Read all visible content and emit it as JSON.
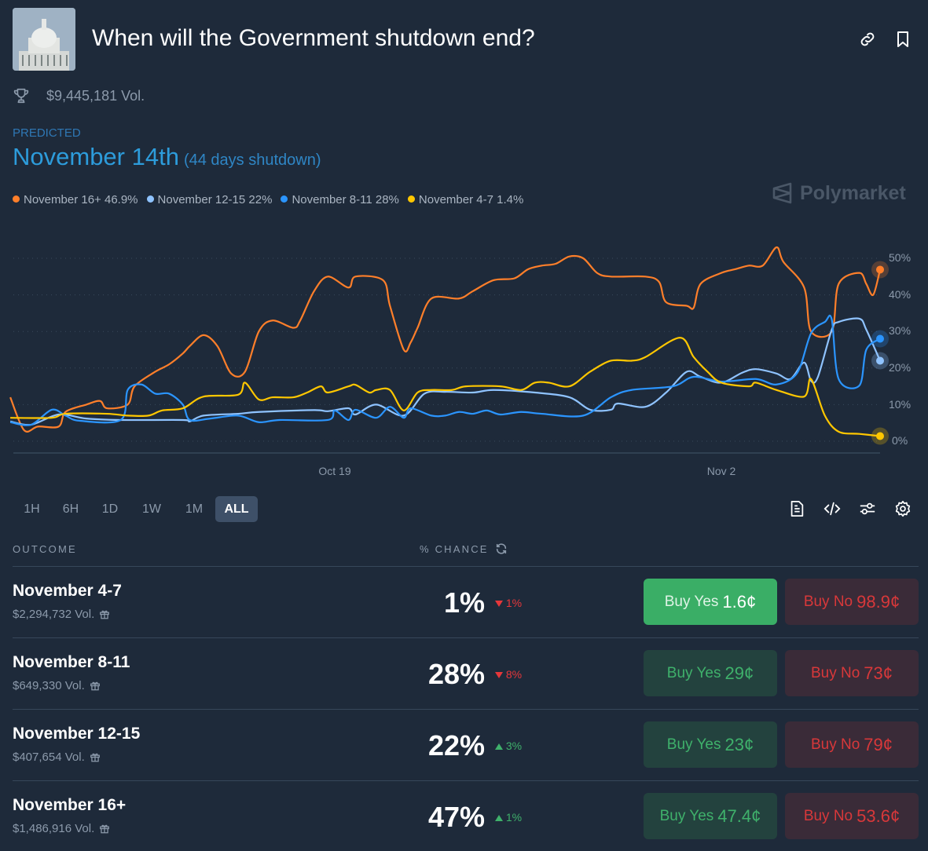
{
  "header": {
    "title": "When will the Government shutdown end?",
    "volume": "$9,445,181 Vol.",
    "icons": [
      "link-icon",
      "bookmark-icon",
      "trophy-icon"
    ]
  },
  "prediction": {
    "label": "PREDICTED",
    "value": "November 14th",
    "detail": "(44 days shutdown)"
  },
  "legend": [
    {
      "label": "November 16+ 46.9%",
      "color": "#ff7f2a"
    },
    {
      "label": "November 12-15 22%",
      "color": "#8fc3ff"
    },
    {
      "label": "November 8-11 28%",
      "color": "#2b95ff"
    },
    {
      "label": "November 4-7 1.4%",
      "color": "#ffc700"
    }
  ],
  "watermark": "Polymarket",
  "chart_data": {
    "type": "line",
    "xlabel": "",
    "ylabel": "",
    "x_ticks": [
      "Oct 19",
      "Nov 2"
    ],
    "y_ticks": [
      "0%",
      "10%",
      "20%",
      "30%",
      "40%",
      "50%"
    ],
    "ylim": [
      0,
      55
    ],
    "grid": true,
    "legend_position": "top-left",
    "series": [
      {
        "name": "November 16+",
        "color": "#ff7f2a",
        "points": [
          [
            "Oct 7 06:00",
            12
          ],
          [
            "Oct 7 18:00",
            3
          ],
          [
            "Oct 8 06:00",
            4
          ],
          [
            "Oct 9 00:00",
            4
          ],
          [
            "Oct 9 06:00",
            8
          ],
          [
            "Oct 10 00:00",
            10
          ],
          [
            "Oct 10 12:00",
            11
          ],
          [
            "Oct 10 18:00",
            9
          ],
          [
            "Oct 11 12:00",
            10
          ],
          [
            "Oct 11 18:00",
            15
          ],
          [
            "Oct 12 12:00",
            19
          ],
          [
            "Oct 13 00:00",
            21
          ],
          [
            "Oct 13 12:00",
            24
          ],
          [
            "Oct 13 18:00",
            26
          ],
          [
            "Oct 14 06:00",
            29
          ],
          [
            "Oct 14 18:00",
            26
          ],
          [
            "Oct 15 06:00",
            18.5
          ],
          [
            "Oct 15 18:00",
            19
          ],
          [
            "Oct 16 06:00",
            30
          ],
          [
            "Oct 16 18:00",
            33
          ],
          [
            "Oct 17 12:00",
            31
          ],
          [
            "Oct 17 18:00",
            33
          ],
          [
            "Oct 18 06:00",
            41
          ],
          [
            "Oct 18 18:00",
            45
          ],
          [
            "Oct 19 12:00",
            42
          ],
          [
            "Oct 19 18:00",
            45
          ],
          [
            "Oct 20 18:00",
            44
          ],
          [
            "Oct 21 00:00",
            37
          ],
          [
            "Oct 21 12:00",
            25
          ],
          [
            "Oct 21 18:00",
            27
          ],
          [
            "Oct 22 00:00",
            31
          ],
          [
            "Oct 22 12:00",
            39
          ],
          [
            "Oct 23 12:00",
            39
          ],
          [
            "Oct 24 00:00",
            41
          ],
          [
            "Oct 24 18:00",
            44
          ],
          [
            "Oct 25 12:00",
            44.5
          ],
          [
            "Oct 26 00:00",
            47
          ],
          [
            "Oct 26 12:00",
            48
          ],
          [
            "Oct 27 00:00",
            48.5
          ],
          [
            "Oct 27 12:00",
            50.5
          ],
          [
            "Oct 28 00:00",
            50
          ],
          [
            "Oct 28 12:00",
            46
          ],
          [
            "Oct 29 00:00",
            45
          ],
          [
            "Oct 30 06:00",
            45
          ],
          [
            "Oct 30 18:00",
            43.5
          ],
          [
            "Oct 31 00:00",
            38
          ],
          [
            "Oct 31 18:00",
            37
          ],
          [
            "Nov 1 00:00",
            36.5
          ],
          [
            "Nov 1 06:00",
            43
          ],
          [
            "Nov 2 00:00",
            46
          ],
          [
            "Nov 2 12:00",
            47
          ],
          [
            "Nov 3 00:00",
            48
          ],
          [
            "Nov 3 12:00",
            48
          ],
          [
            "Nov 4 00:00",
            53
          ],
          [
            "Nov 4 06:00",
            49
          ],
          [
            "Nov 5 00:00",
            42
          ],
          [
            "Nov 5 06:00",
            30
          ],
          [
            "Nov 6 00:00",
            30
          ],
          [
            "Nov 6 06:00",
            43
          ],
          [
            "Nov 7 00:00",
            46
          ],
          [
            "Nov 7 06:00",
            43
          ],
          [
            "Nov 7 12:00",
            40
          ],
          [
            "Nov 7 18:00",
            46.9
          ]
        ]
      },
      {
        "name": "November 12-15",
        "color": "#8fc3ff",
        "points": [
          [
            "Oct 7 06:00",
            5.4
          ],
          [
            "Oct 8 00:00",
            4.5
          ],
          [
            "Oct 9 00:00",
            7.3
          ],
          [
            "Oct 10 00:00",
            6.2
          ],
          [
            "Oct 11 06:00",
            5.8
          ],
          [
            "Oct 13 12:00",
            5.8
          ],
          [
            "Oct 13 18:00",
            5.4
          ],
          [
            "Oct 14 06:00",
            7
          ],
          [
            "Oct 15 12:00",
            7.5
          ],
          [
            "Oct 16 06:00",
            8
          ],
          [
            "Oct 18 06:00",
            8.5
          ],
          [
            "Oct 18 18:00",
            8.2
          ],
          [
            "Oct 19 12:00",
            9
          ],
          [
            "Oct 19 18:00",
            7.3
          ],
          [
            "Oct 20 12:00",
            10
          ],
          [
            "Oct 21 12:00",
            7
          ],
          [
            "Oct 22 06:00",
            13
          ],
          [
            "Oct 23 00:00",
            13.5
          ],
          [
            "Oct 24 00:00",
            13.3
          ],
          [
            "Oct 24 18:00",
            14
          ],
          [
            "Oct 26 06:00",
            13.3
          ],
          [
            "Oct 27 12:00",
            12
          ],
          [
            "Oct 28 06:00",
            8.6
          ],
          [
            "Oct 29 00:00",
            8.6
          ],
          [
            "Oct 29 06:00",
            10.3
          ],
          [
            "Oct 30 06:00",
            9.4
          ],
          [
            "Oct 31 00:00",
            13.3
          ],
          [
            "Oct 31 18:00",
            19
          ],
          [
            "Nov 1 06:00",
            17.6
          ],
          [
            "Nov 2 00:00",
            16
          ],
          [
            "Nov 2 18:00",
            18.7
          ],
          [
            "Nov 3 06:00",
            19.7
          ],
          [
            "Nov 4 00:00",
            18.5
          ],
          [
            "Nov 4 12:00",
            17
          ],
          [
            "Nov 5 00:00",
            21.5
          ],
          [
            "Nov 5 06:00",
            16.5
          ],
          [
            "Nov 5 12:00",
            17.6
          ],
          [
            "Nov 6 00:00",
            30.5
          ],
          [
            "Nov 6 06:00",
            32.6
          ],
          [
            "Nov 7 00:00",
            33.5
          ],
          [
            "Nov 7 06:00",
            30.5
          ],
          [
            "Nov 7 18:00",
            22
          ]
        ]
      },
      {
        "name": "November 8-11",
        "color": "#2b95ff",
        "points": [
          [
            "Oct 7 06:00",
            5.2
          ],
          [
            "Oct 8 00:00",
            4.5
          ],
          [
            "Oct 8 18:00",
            8.6
          ],
          [
            "Oct 9 06:00",
            7
          ],
          [
            "Oct 9 18:00",
            5.6
          ],
          [
            "Oct 11 06:00",
            5.8
          ],
          [
            "Oct 11 12:00",
            14
          ],
          [
            "Oct 12 00:00",
            15.5
          ],
          [
            "Oct 12 12:00",
            13
          ],
          [
            "Oct 13 00:00",
            13
          ],
          [
            "Oct 13 12:00",
            10
          ],
          [
            "Oct 13 18:00",
            5.8
          ],
          [
            "Oct 14 12:00",
            6.2
          ],
          [
            "Oct 15 12:00",
            7
          ],
          [
            "Oct 16 06:00",
            5.2
          ],
          [
            "Oct 17 00:00",
            5.8
          ],
          [
            "Oct 18 18:00",
            5.8
          ],
          [
            "Oct 19 00:00",
            8.4
          ],
          [
            "Oct 19 12:00",
            5.8
          ],
          [
            "Oct 19 18:00",
            8.6
          ],
          [
            "Oct 20 12:00",
            6.4
          ],
          [
            "Oct 21 00:00",
            9.4
          ],
          [
            "Oct 21 12:00",
            6.4
          ],
          [
            "Oct 21 18:00",
            9
          ],
          [
            "Oct 22 12:00",
            7
          ],
          [
            "Oct 23 00:00",
            7
          ],
          [
            "Oct 23 12:00",
            8
          ],
          [
            "Oct 24 00:00",
            7.5
          ],
          [
            "Oct 24 12:00",
            8.4
          ],
          [
            "Oct 25 00:00",
            7.3
          ],
          [
            "Oct 25 18:00",
            8
          ],
          [
            "Oct 26 12:00",
            7.5
          ],
          [
            "Oct 28 00:00",
            7
          ],
          [
            "Oct 29 00:00",
            12
          ],
          [
            "Oct 29 18:00",
            14
          ],
          [
            "Oct 31 06:00",
            15
          ],
          [
            "Nov 1 00:00",
            17.6
          ],
          [
            "Nov 2 00:00",
            16.3
          ],
          [
            "Nov 3 06:00",
            17
          ],
          [
            "Nov 4 00:00",
            15.5
          ],
          [
            "Nov 4 18:00",
            18.7
          ],
          [
            "Nov 5 06:00",
            29.5
          ],
          [
            "Nov 5 18:00",
            32.6
          ],
          [
            "Nov 6 00:00",
            33.3
          ],
          [
            "Nov 6 06:00",
            17
          ],
          [
            "Nov 7 00:00",
            15.2
          ],
          [
            "Nov 7 06:00",
            25
          ],
          [
            "Nov 7 18:00",
            28
          ]
        ]
      },
      {
        "name": "November 4-7",
        "color": "#ffc700",
        "points": [
          [
            "Oct 7 06:00",
            6.4
          ],
          [
            "Oct 8 18:00",
            6.4
          ],
          [
            "Oct 9 06:00",
            7.5
          ],
          [
            "Oct 10 18:00",
            7.5
          ],
          [
            "Oct 11 12:00",
            7
          ],
          [
            "Oct 12 06:00",
            7
          ],
          [
            "Oct 12 18:00",
            8.4
          ],
          [
            "Oct 13 12:00",
            9
          ],
          [
            "Oct 14 06:00",
            12.2
          ],
          [
            "Oct 15 12:00",
            12.7
          ],
          [
            "Oct 15 18:00",
            16
          ],
          [
            "Oct 16 06:00",
            11.4
          ],
          [
            "Oct 16 18:00",
            12
          ],
          [
            "Oct 17 12:00",
            12
          ],
          [
            "Oct 18 00:00",
            13.3
          ],
          [
            "Oct 18 12:00",
            15
          ],
          [
            "Oct 18 18:00",
            13.3
          ],
          [
            "Oct 19 12:00",
            15
          ],
          [
            "Oct 19 18:00",
            15.4
          ],
          [
            "Oct 20 06:00",
            13.3
          ],
          [
            "Oct 20 12:00",
            14
          ],
          [
            "Oct 21 00:00",
            14
          ],
          [
            "Oct 21 12:00",
            8.4
          ],
          [
            "Oct 22 00:00",
            13.3
          ],
          [
            "Oct 22 12:00",
            14
          ],
          [
            "Oct 23 06:00",
            14
          ],
          [
            "Oct 23 18:00",
            15
          ],
          [
            "Oct 25 00:00",
            15
          ],
          [
            "Oct 25 18:00",
            14
          ],
          [
            "Oct 26 06:00",
            16
          ],
          [
            "Oct 26 18:00",
            16
          ],
          [
            "Oct 27 12:00",
            15
          ],
          [
            "Oct 28 06:00",
            19
          ],
          [
            "Oct 29 00:00",
            22
          ],
          [
            "Oct 29 18:00",
            22
          ],
          [
            "Oct 30 06:00",
            23
          ],
          [
            "Oct 31 12:00",
            28.3
          ],
          [
            "Nov 1 00:00",
            23
          ],
          [
            "Nov 1 12:00",
            19
          ],
          [
            "Nov 2 00:00",
            16
          ],
          [
            "Nov 3 00:00",
            15
          ],
          [
            "Nov 3 06:00",
            16
          ],
          [
            "Nov 4 00:00",
            14
          ],
          [
            "Nov 5 00:00",
            12.2
          ],
          [
            "Nov 5 06:00",
            17
          ],
          [
            "Nov 5 18:00",
            7
          ],
          [
            "Nov 6 06:00",
            2.6
          ],
          [
            "Nov 7 00:00",
            2
          ],
          [
            "Nov 7 18:00",
            1.4
          ]
        ]
      }
    ]
  },
  "timeframes": [
    "1H",
    "6H",
    "1D",
    "1W",
    "1M",
    "ALL"
  ],
  "active_timeframe": "ALL",
  "toolbar_icons": [
    "document-icon",
    "code-icon",
    "sliders-icon",
    "gear-icon"
  ],
  "table": {
    "col_outcome": "OUTCOME",
    "col_chance": "% CHANCE",
    "buy_yes_label": "Buy Yes",
    "buy_no_label": "Buy No",
    "rows": [
      {
        "name": "November 4-7",
        "volume": "$2,294,732 Vol.",
        "chance": "1%",
        "change": "1%",
        "direction": "down",
        "yes_price": "1.6¢",
        "no_price": "98.9¢"
      },
      {
        "name": "November 8-11",
        "volume": "$649,330 Vol.",
        "chance": "28%",
        "change": "8%",
        "direction": "down",
        "yes_price": "29¢",
        "no_price": "73¢"
      },
      {
        "name": "November 12-15",
        "volume": "$407,654 Vol.",
        "chance": "22%",
        "change": "3%",
        "direction": "up",
        "yes_price": "23¢",
        "no_price": "79¢"
      },
      {
        "name": "November 16+",
        "volume": "$1,486,916 Vol.",
        "chance": "47%",
        "change": "1%",
        "direction": "up",
        "yes_price": "47.4¢",
        "no_price": "53.6¢"
      }
    ]
  },
  "colors": {
    "up": "#3fb16b",
    "down": "#e6373a",
    "accent": "#2d9cdb"
  }
}
